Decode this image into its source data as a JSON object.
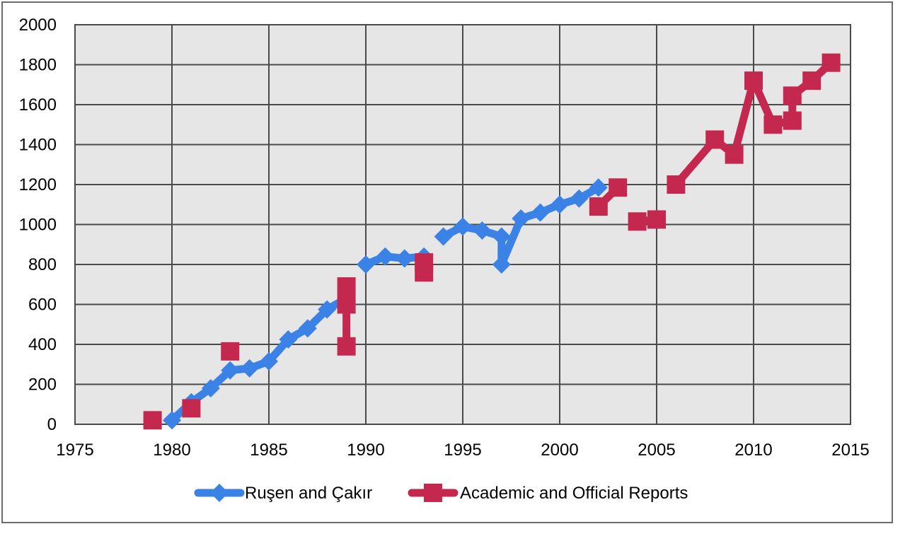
{
  "chart_data": {
    "type": "line",
    "title": "",
    "xlabel": "",
    "ylabel": "",
    "xlim": [
      1975,
      2015
    ],
    "ylim": [
      0,
      2000
    ],
    "x_ticks": [
      "1975",
      "1980",
      "1985",
      "1990",
      "1995",
      "2000",
      "2005",
      "2010",
      "2015"
    ],
    "y_ticks": [
      "0",
      "200",
      "400",
      "600",
      "800",
      "1000",
      "1200",
      "1400",
      "1600",
      "1800",
      "2000"
    ],
    "grid": true,
    "legend_position": "bottom",
    "plot_background": "#e6e6e6",
    "series": [
      {
        "name": "Ruşen and Çakır",
        "color": "#3b82e6",
        "marker": "diamond",
        "segments": [
          [
            [
              1980,
              20
            ],
            [
              1981,
              110
            ],
            [
              1982,
              180
            ],
            [
              1983,
              270
            ],
            [
              1984,
              280
            ],
            [
              1985,
              315
            ],
            [
              1986,
              425
            ],
            [
              1987,
              480
            ],
            [
              1988,
              575
            ],
            [
              1989,
              630
            ]
          ],
          [
            [
              1990,
              800
            ],
            [
              1991,
              840
            ],
            [
              1992,
              830
            ],
            [
              1993,
              840
            ]
          ],
          [
            [
              1994,
              940
            ],
            [
              1995,
              990
            ],
            [
              1996,
              970
            ],
            [
              1997,
              940
            ],
            [
              1997,
              800
            ],
            [
              1998,
              1030
            ],
            [
              1999,
              1060
            ],
            [
              2000,
              1100
            ],
            [
              2001,
              1130
            ],
            [
              2002,
              1185
            ]
          ]
        ]
      },
      {
        "name": "Academic and Official Reports",
        "color": "#c4284e",
        "marker": "square",
        "segments": [
          [
            [
              1979,
              20
            ]
          ],
          [
            [
              1981,
              80
            ]
          ],
          [
            [
              1983,
              365
            ]
          ],
          [
            [
              1989,
              690
            ],
            [
              1989,
              600
            ],
            [
              1989,
              390
            ]
          ],
          [
            [
              1993,
              810
            ],
            [
              1993,
              760
            ]
          ],
          [
            [
              2002,
              1090
            ],
            [
              2003,
              1185
            ]
          ],
          [
            [
              2004,
              1015
            ],
            [
              2005,
              1025
            ]
          ],
          [
            [
              2006,
              1200
            ],
            [
              2008,
              1425
            ],
            [
              2009,
              1350
            ],
            [
              2010,
              1720
            ],
            [
              2011,
              1500
            ],
            [
              2012,
              1520
            ],
            [
              2012,
              1645
            ],
            [
              2013,
              1720
            ],
            [
              2014,
              1810
            ]
          ]
        ]
      }
    ]
  }
}
